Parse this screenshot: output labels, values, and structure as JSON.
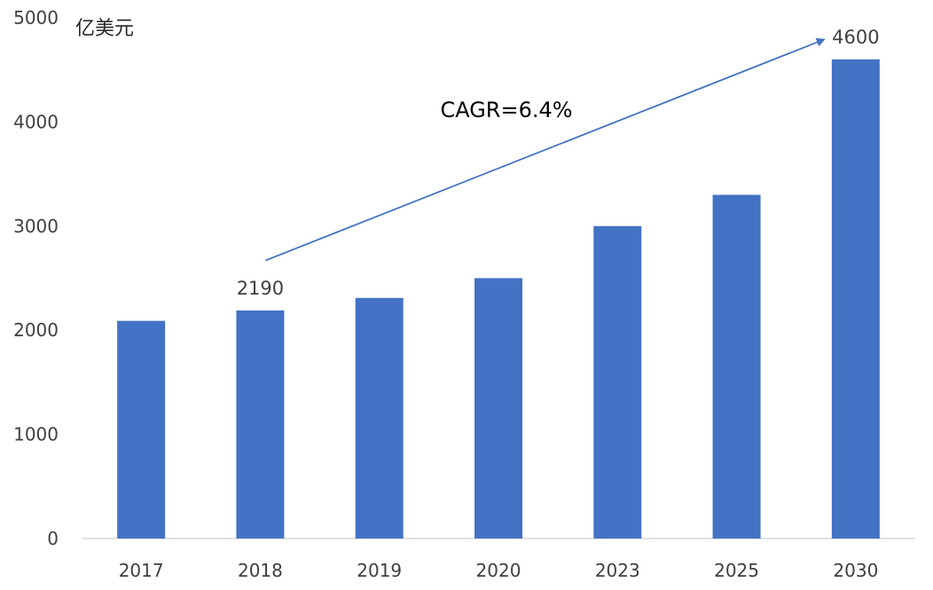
{
  "chart_data": {
    "type": "bar",
    "unit_label": "亿美元",
    "categories": [
      "2017",
      "2018",
      "2019",
      "2020",
      "2023",
      "2025",
      "2030"
    ],
    "values": [
      2090,
      2190,
      2310,
      2500,
      3000,
      3300,
      4600
    ],
    "ylim": [
      0,
      5000
    ],
    "yticks": [
      0,
      1000,
      2000,
      3000,
      4000,
      5000
    ],
    "grid": false,
    "bar_color": "#4472C4",
    "data_labels": [
      {
        "category": "2018",
        "text": "2190"
      },
      {
        "category": "2030",
        "text": "4600"
      }
    ],
    "annotation": {
      "text": "CAGR=6.4%",
      "arrow_from": {
        "category": "2018",
        "value": 2670
      },
      "arrow_to": {
        "category": "2030",
        "value": 4790
      },
      "color": "#4472C4"
    }
  }
}
